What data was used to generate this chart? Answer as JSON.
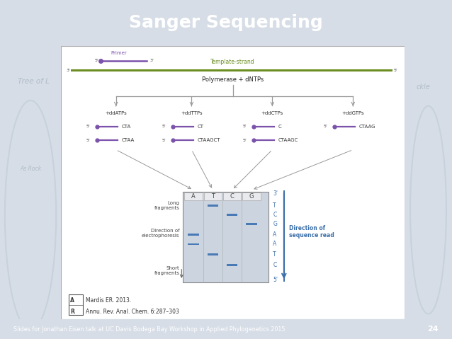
{
  "title": "Sanger Sequencing",
  "title_color": "#FFFFFF",
  "header_bg": "#1e3f66",
  "slide_bg": "#d6dde6",
  "content_bg": "#FFFFFF",
  "footer_text": "Slides for Jonathan Eisen talk at UC Davis Bodega Bay Workshop in Applied Phylogenetics 2015",
  "footer_number": "24",
  "reference_text1": "Mardis ER. 2013.",
  "reference_text2": "Annu. Rev. Anal. Chem. 6:287–303",
  "primer_label": "Primer",
  "primer_color": "#7B52AB",
  "template_color": "#6B8E23",
  "template_label": "Template-strand",
  "polymerase_label": "Polymerase + dNTPs",
  "branches": [
    "+ddATPs",
    "+ddTTPs",
    "+ddCTPs",
    "+ddGTPs"
  ],
  "fragments_row1": [
    "CTA",
    "CT",
    "C",
    "CTAAG"
  ],
  "fragments_row2": [
    "CTAA",
    "CTAAGCT",
    "CTAAGC",
    null
  ],
  "gel_columns": [
    "A",
    "T",
    "C",
    "G"
  ],
  "gel_sequence": [
    "3'",
    "T",
    "C",
    "G",
    "A",
    "A",
    "T",
    "C",
    "5'"
  ],
  "gel_bg": "#ccd4e0",
  "gel_band_color": "#4a7ab5",
  "direction_label": "Direction of\nsequence read",
  "long_fragments": "Long\nfragments",
  "dir_electrophoresis": "Direction of\nelectrophoresis",
  "short_fragments": "Short\nfragments",
  "arrow_color": "#3a6ea8",
  "tree_watermark": "Tree of L",
  "watermark_color": "#b0bcc8",
  "line_color": "#999999",
  "watermark_circle_color": "#c8d2dc"
}
